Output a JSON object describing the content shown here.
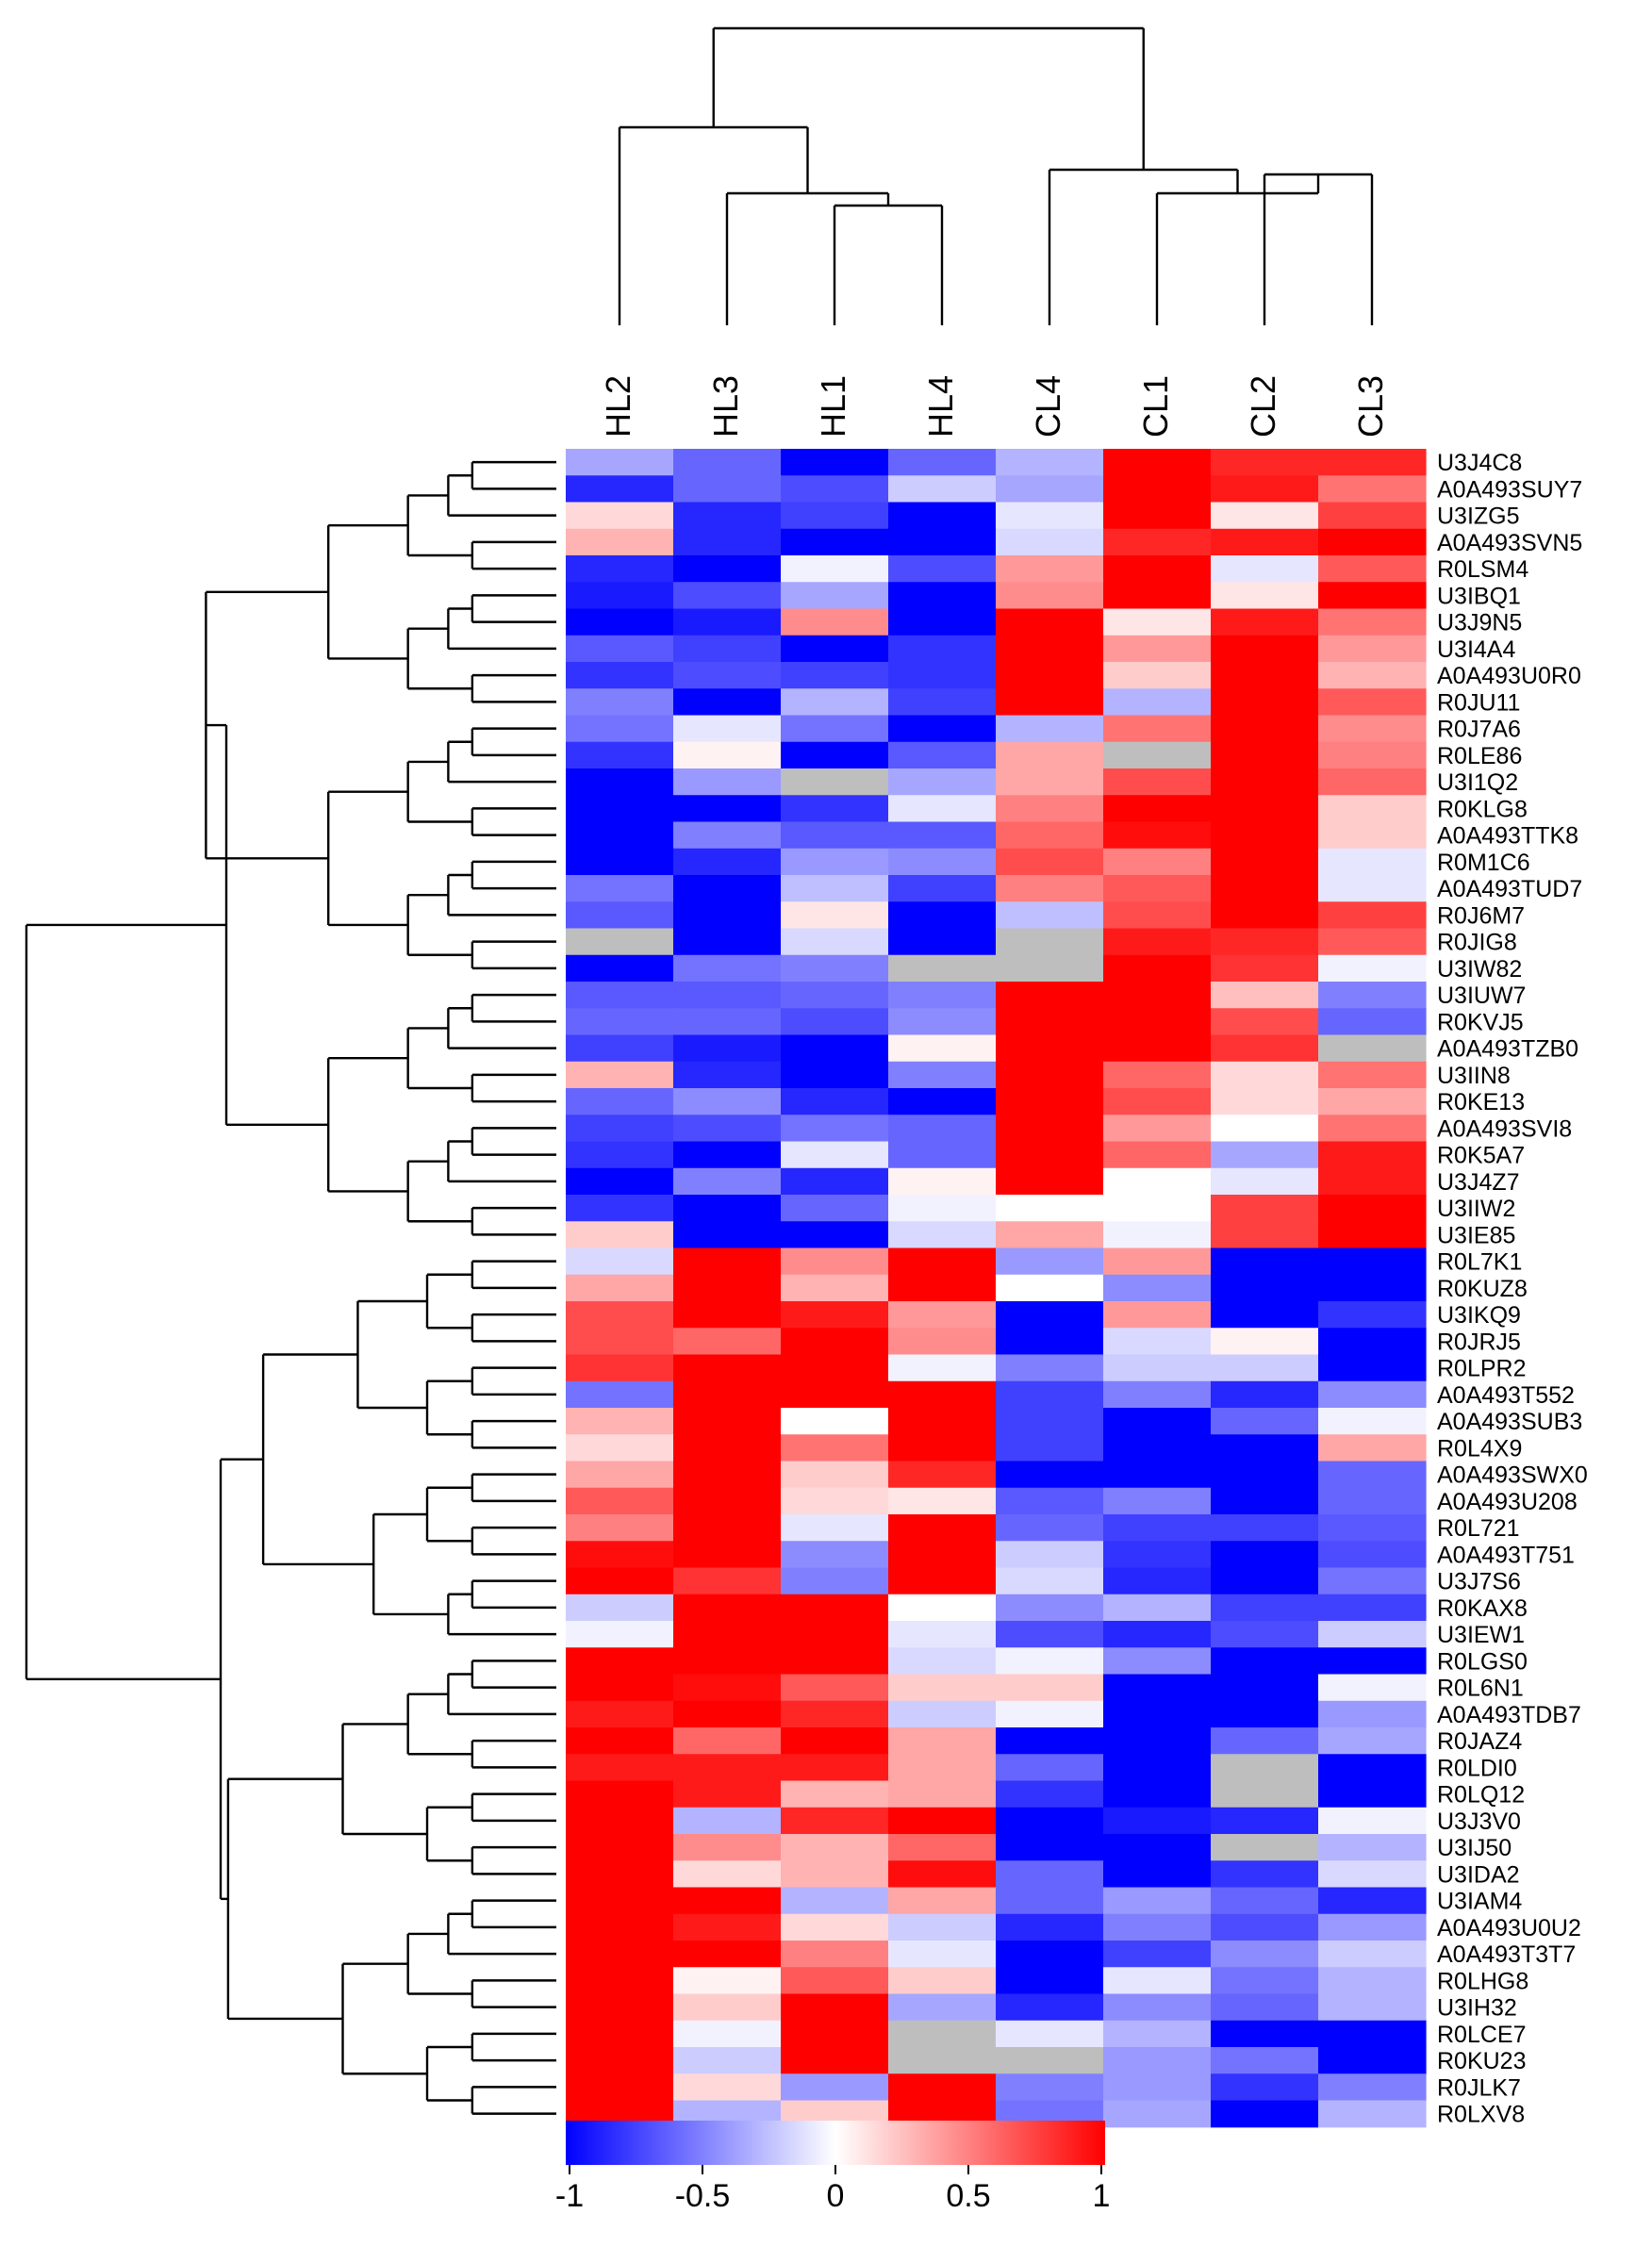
{
  "chart_data": {
    "type": "heatmap",
    "title": "",
    "columns": [
      "HL2",
      "HL3",
      "HL1",
      "HL4",
      "CL4",
      "CL1",
      "CL2",
      "CL3"
    ],
    "rows": [
      "U3J4C8",
      "A0A493SUY7",
      "U3IZG5",
      "A0A493SVN5",
      "R0LSM4",
      "U3IBQ1",
      "U3J9N5",
      "U3I4A4",
      "A0A493U0R0",
      "R0JU11",
      "R0J7A6",
      "R0LE86",
      "U3I1Q2",
      "R0KLG8",
      "A0A493TTK8",
      "R0M1C6",
      "A0A493TUD7",
      "R0J6M7",
      "R0JIG8",
      "U3IW82",
      "U3IUW7",
      "R0KVJ5",
      "A0A493TZB0",
      "U3IIN8",
      "R0KE13",
      "A0A493SVI8",
      "R0K5A7",
      "U3J4Z7",
      "U3IIW2",
      "U3IE85",
      "R0L7K1",
      "R0KUZ8",
      "U3IKQ9",
      "R0JRJ5",
      "R0LPR2",
      "A0A493T552",
      "A0A493SUB3",
      "R0L4X9",
      "A0A493SWX0",
      "A0A493U208",
      "R0L721",
      "A0A493T751",
      "U3J7S6",
      "R0KAX8",
      "U3IEW1",
      "R0LGS0",
      "R0L6N1",
      "A0A493TDB7",
      "R0JAZ4",
      "R0LDI0",
      "R0LQ12",
      "U3J3V0",
      "U3IJ50",
      "U3IDA2",
      "U3IAM4",
      "A0A493U0U2",
      "A0A493T3T7",
      "R0LHG8",
      "U3IH32",
      "R0LCE7",
      "R0KU23",
      "R0JLK7",
      "R0LXV8"
    ],
    "values": [
      [
        -0.35,
        -0.6,
        -1,
        -0.6,
        -0.3,
        1,
        0.85,
        0.85
      ],
      [
        -0.85,
        -0.6,
        -0.7,
        -0.2,
        -0.35,
        1,
        0.9,
        0.55
      ],
      [
        0.15,
        -0.85,
        -0.75,
        -1,
        -0.1,
        1,
        0.1,
        0.75
      ],
      [
        0.3,
        -0.85,
        -1,
        -1,
        -0.15,
        0.85,
        0.9,
        1
      ],
      [
        -0.85,
        -1,
        -0.05,
        -0.7,
        0.4,
        1,
        -0.1,
        0.65
      ],
      [
        -0.9,
        -0.7,
        -0.35,
        -1,
        0.45,
        1,
        0.1,
        1
      ],
      [
        -1,
        -0.9,
        0.45,
        -1,
        1,
        0.1,
        0.9,
        0.55
      ],
      [
        -0.65,
        -0.75,
        -1,
        -0.8,
        1,
        0.4,
        1,
        0.4
      ],
      [
        -0.8,
        -0.7,
        -0.75,
        -0.8,
        1,
        0.2,
        1,
        0.3
      ],
      [
        -0.5,
        -1,
        -0.3,
        -0.75,
        1,
        -0.3,
        1,
        0.65
      ],
      [
        -0.55,
        -0.1,
        -0.55,
        -1,
        -0.3,
        0.55,
        1,
        0.45
      ],
      [
        -0.8,
        0.05,
        -1,
        -0.65,
        0.35,
        null,
        1,
        0.5
      ],
      [
        -1,
        -0.4,
        null,
        -0.35,
        0.35,
        0.7,
        1,
        0.6
      ],
      [
        -1,
        -1,
        -0.8,
        -0.1,
        0.5,
        1,
        1,
        0.2
      ],
      [
        -1,
        -0.5,
        -0.65,
        -0.65,
        0.6,
        0.95,
        1,
        0.2
      ],
      [
        -1,
        -0.85,
        -0.4,
        -0.45,
        0.7,
        0.5,
        1,
        -0.1
      ],
      [
        -0.55,
        -1,
        -0.25,
        -0.75,
        0.5,
        0.65,
        1,
        -0.1
      ],
      [
        -0.65,
        -1,
        0.1,
        -1,
        -0.25,
        0.7,
        1,
        0.75
      ],
      [
        null,
        -1,
        -0.15,
        -1,
        null,
        0.9,
        0.85,
        0.65
      ],
      [
        -1,
        -0.55,
        -0.5,
        null,
        null,
        1,
        0.8,
        -0.05
      ],
      [
        -0.65,
        -0.65,
        -0.6,
        -0.5,
        1,
        1,
        0.25,
        -0.5
      ],
      [
        -0.6,
        -0.6,
        -0.7,
        -0.45,
        1,
        1,
        0.7,
        -0.6
      ],
      [
        -0.75,
        -0.9,
        -1,
        0.05,
        1,
        1,
        0.8,
        null
      ],
      [
        0.3,
        -0.85,
        -1,
        -0.5,
        1,
        0.6,
        0.15,
        0.55
      ],
      [
        -0.6,
        -0.45,
        -0.85,
        -1,
        1,
        0.7,
        0.15,
        0.35
      ],
      [
        -0.75,
        -0.7,
        -0.55,
        -0.6,
        1,
        0.4,
        0,
        0.55
      ],
      [
        -0.8,
        -1,
        -0.1,
        -0.6,
        1,
        0.6,
        -0.35,
        0.9
      ],
      [
        -1,
        -0.5,
        -0.85,
        0.05,
        1,
        0,
        -0.1,
        0.9
      ],
      [
        -0.8,
        -1,
        -0.6,
        -0.05,
        0,
        0,
        0.75,
        1
      ],
      [
        0.2,
        -1,
        -1,
        -0.15,
        0.35,
        -0.05,
        0.75,
        1
      ],
      [
        -0.15,
        1,
        0.45,
        1,
        -0.4,
        0.4,
        -1,
        -1
      ],
      [
        0.35,
        1,
        0.3,
        1,
        0,
        -0.45,
        -1,
        -1
      ],
      [
        0.7,
        1,
        0.9,
        0.4,
        -1,
        0.4,
        -1,
        -0.8
      ],
      [
        0.7,
        0.6,
        1,
        0.45,
        -1,
        -0.15,
        0.05,
        -1
      ],
      [
        0.8,
        1,
        1,
        -0.05,
        -0.5,
        -0.2,
        -0.2,
        -1
      ],
      [
        -0.55,
        1,
        1,
        1,
        -0.75,
        -0.5,
        -0.85,
        -0.45
      ],
      [
        0.3,
        1,
        0,
        1,
        -0.75,
        -1,
        -0.6,
        -0.05
      ],
      [
        0.15,
        1,
        0.55,
        1,
        -0.75,
        -1,
        -1,
        0.35
      ],
      [
        0.35,
        1,
        0.2,
        0.85,
        -1,
        -1,
        -1,
        -0.6
      ],
      [
        0.65,
        1,
        0.15,
        0.1,
        -0.65,
        -0.5,
        -1,
        -0.6
      ],
      [
        0.5,
        1,
        -0.1,
        1,
        -0.6,
        -0.75,
        -0.75,
        -0.65
      ],
      [
        0.95,
        1,
        -0.45,
        1,
        -0.2,
        -0.8,
        -1,
        -0.7
      ],
      [
        1,
        0.8,
        -0.5,
        1,
        -0.15,
        -0.85,
        -1,
        -0.55
      ],
      [
        -0.2,
        1,
        1,
        0,
        -0.45,
        -0.3,
        -0.75,
        -0.75
      ],
      [
        -0.05,
        1,
        1,
        -0.1,
        -0.7,
        -0.85,
        -0.7,
        -0.2
      ],
      [
        1,
        1,
        1,
        -0.15,
        -0.05,
        -0.45,
        -1,
        -1
      ],
      [
        1,
        0.95,
        0.65,
        0.2,
        0.2,
        -1,
        -1,
        -0.05
      ],
      [
        0.9,
        1,
        0.85,
        -0.2,
        -0.05,
        -1,
        -1,
        -0.4
      ],
      [
        1,
        0.6,
        1,
        0.35,
        -1,
        -1,
        -0.6,
        -0.35
      ],
      [
        0.9,
        0.9,
        0.9,
        0.35,
        -0.6,
        -1,
        null,
        -1
      ],
      [
        1,
        0.9,
        0.3,
        0.35,
        -0.8,
        -1,
        null,
        -1
      ],
      [
        1,
        -0.3,
        0.85,
        1,
        -1,
        -0.9,
        -0.85,
        -0.05
      ],
      [
        1,
        0.45,
        0.3,
        0.6,
        -1,
        -1,
        null,
        -0.3
      ],
      [
        1,
        0.15,
        0.3,
        0.95,
        -0.6,
        -1,
        -0.8,
        -0.15
      ],
      [
        1,
        1,
        -0.3,
        0.35,
        -0.6,
        -0.4,
        -0.6,
        -0.85
      ],
      [
        1,
        0.9,
        0.15,
        -0.2,
        -0.85,
        -0.5,
        -0.7,
        -0.4
      ],
      [
        1,
        1,
        0.5,
        -0.1,
        -1,
        -0.75,
        -0.45,
        -0.2
      ],
      [
        1,
        0.05,
        0.65,
        0.2,
        -1,
        -0.1,
        -0.55,
        -0.3
      ],
      [
        1,
        0.2,
        1,
        -0.35,
        -0.85,
        -0.45,
        -0.6,
        -0.3
      ],
      [
        1,
        -0.05,
        1,
        null,
        -0.1,
        -0.3,
        -1,
        -1
      ],
      [
        1,
        -0.2,
        1,
        null,
        null,
        -0.4,
        -0.55,
        -1
      ],
      [
        1,
        0.15,
        -0.4,
        1,
        -0.5,
        -0.4,
        -0.8,
        -0.5
      ],
      [
        1,
        -0.3,
        0.2,
        1,
        -0.55,
        -0.35,
        -1,
        -0.3
      ]
    ],
    "missing_color": "#bebebe",
    "colorscale": {
      "low": "#0000ff",
      "mid": "#ffffff",
      "high": "#ff0000",
      "min": -1,
      "max": 1,
      "ticks": [
        "-1",
        "-0.5",
        "0",
        "0.5",
        "1"
      ]
    },
    "column_order_note": "columns clustered: (HL2,(HL3,(HL1,HL4))),(CL4,(CL1,(CL2,CL3)))"
  }
}
